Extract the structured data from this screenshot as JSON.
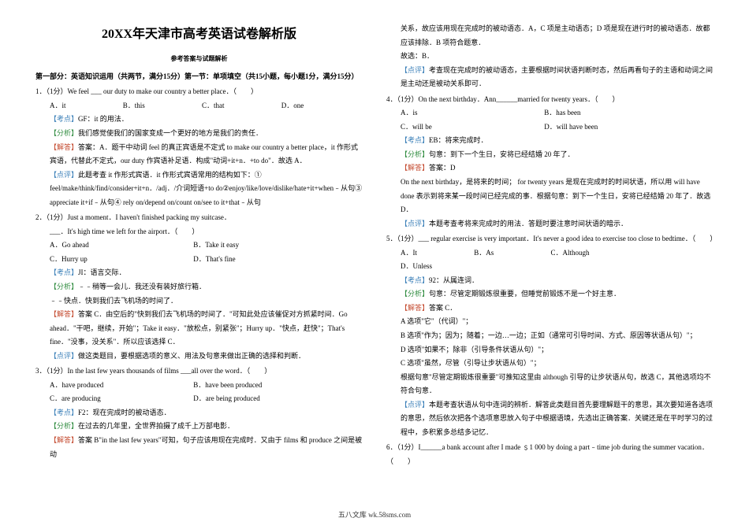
{
  "title": "20XX年天津市高考英语试卷解析版",
  "subtitle": "参考答案与试题解析",
  "section1": "第一部分：英语知识运用（共两节，满分15分）第一节：单项填空（共15小题，每小题1分，满分15分）",
  "q1": {
    "stem": "1．（1分）We feel ___ our duty to make our country a better place．（　　）",
    "a": "A．it",
    "b": "B．this",
    "c": "C．that",
    "d": "D．one",
    "kd_lbl": "【考点】",
    "kd": "GF：it 的用法．",
    "fx_lbl": "【分析】",
    "fx": "我们感觉使我们的国家变成一个更好的地方是我们的责任．",
    "jd_lbl": "【解答】",
    "jd": "答案：A．题干中动词 feel 的真正宾语是不定式 to make our country a better place，it 作形式宾语，代替此不定式，our duty 作宾语补足语．构成\"动词+it+n．+to do\"．故选 A．",
    "dp_lbl": "【点评】",
    "dp": "此题考查 it 作形式宾语．it 作形式宾语常用的结构如下：① feel/make/think/find/consider+it+n．/adj．/介词短语+to do②enjoy/like/love/dislike/hate+it+when﹣从句③ appreciate it+if﹣从句④ rely on/depend on/count on/see to it+that﹣从句"
  },
  "q2": {
    "stem": "2．（1分）Just a moment．I haven't finished packing my suitcase．",
    "stem2": "___．It's high time we left for the airport．（　　）",
    "a": "A．Go ahead",
    "b": "B．Take it easy",
    "c": "C．Hurry up",
    "d": "D．That's fine",
    "kd_lbl": "【考点】",
    "kd": "JI：语言交际．",
    "fx_lbl": "【分析】",
    "fx": "﹣﹣稍等一会儿．我还没有装好旅行箱．",
    "fx2": "﹣﹣快点．快到我们去飞机场的时间了．",
    "jd_lbl": "【解答】",
    "jd": "答案 C．由空后的\"快到我们去飞机场的时间了．\"可知此处应该催促对方抓紧时间．Go ahead．\"干吧，继续，开始\"；Take it easy．\"放松点，别紧张\"；Hurry up．\"快点，赶快\"；That's fine．\"没事，没关系\"．所以应该选择 C．",
    "dp_lbl": "【点评】",
    "dp": "做这类题目，要根据选项的意义、用法及句意来做出正确的选择和判断．"
  },
  "q3": {
    "stem": "3．（1分）In the last few years thousands of films ___all over the word．（　　）",
    "a": "A．have produced",
    "b": "B．have been produced",
    "c": "C．are producing",
    "d": "D．are being produced",
    "kd_lbl": "【考点】",
    "kd": "F2：现在完成时的被动语态．",
    "fx_lbl": "【分析】",
    "fx": "在过去的几年里，全世界拍摄了成千上万部电影．",
    "jd_lbl": "【解答】",
    "jd": "答案 B\"in the last few years\"可知，句子应该用现在完成时．又由于 films 和 produce 之间是被动"
  },
  "r1": {
    "p1": "关系，故应该用现在完成时的被动语态．A，C 项是主动语态；D 项是现在进行时的被动语态．故都应该排除．B 项符合题意．",
    "p2": "故选：B．",
    "dp_lbl": "【点评】",
    "dp": "考查现在完成时的被动语态，主要根据时间状语判断时态，然后再看句子的主语和动词之间是主动还是被动关系即可．"
  },
  "q4": {
    "stem": "4．（1分）On the next birthday．Ann______married for twenty years．（　　）",
    "a": "A．is",
    "b": "B．has been",
    "c": "C．will be",
    "d": "D．will have been",
    "kd_lbl": "【考点】",
    "kd": "EB：将来完成时．",
    "fx_lbl": "【分析】",
    "fx": "句意：到下一个生日，安将已经结婚 20 年了．",
    "jd_lbl": "【解答】",
    "jd": "答案：D",
    "jd2": "On the next birthday，是将来的时间； for twenty years 是现在完成时的时间状语，所以用 will have done 表示到将来某一段时间已经完成的事．根据句意：到下一个生日，安将已经结婚 20 年了．故选 D．",
    "dp_lbl": "【点评】",
    "dp": "本题考查考将来完成时的用法．答题时要注意时间状语的暗示．"
  },
  "q5": {
    "stem": "5．（1分）___ regular exercise is very important．It's never a good idea to exercise too close to bedtime．（　　）",
    "a": "A．It",
    "b": "B．As",
    "c": "C．Although",
    "d": "D．Unless",
    "kd_lbl": "【考点】",
    "kd": "92：从属连词．",
    "fx_lbl": "【分析】",
    "fx": "句意：尽管定期锻炼很重要，但睡觉前锻炼不是一个好主意．",
    "jd_lbl": "【解答】",
    "jd": "答案 C．",
    "l1": "A 选项\"它\"（代词）\"；",
    "l2": "B 选项\"作为；因为；随着；一边…一边；正如（通常可引导时间、方式、原因等状语从句）\"；",
    "l3": "D 选项\"如果不；除非（引导条件状语从句）\"；",
    "l4": "C 选项\"虽然，尽管（引导让步状语从句）\"；",
    "l5": "根据句意\"尽管定期锻炼很重要\"可推知这里由 although 引导的让步状语从句，故选 C，其他选项均不符合句意．",
    "dp_lbl": "【点评】",
    "dp": "本题考查状语从句中连词的辨析．解答此类题目首先要理解题干的意思，其次要知道各选项的意思，然后依次把各个选项意思放入句子中根据语境，先选出正确答案．关键还是在平时学习的过程中，多积累多总结多记忆．"
  },
  "q6": {
    "stem": "6．（1分）I______a bank account after I made ﹩1 000 by doing a part﹣time job during the summer vacation．（　　）"
  },
  "footer": "五八文库 wk.58sms.com"
}
